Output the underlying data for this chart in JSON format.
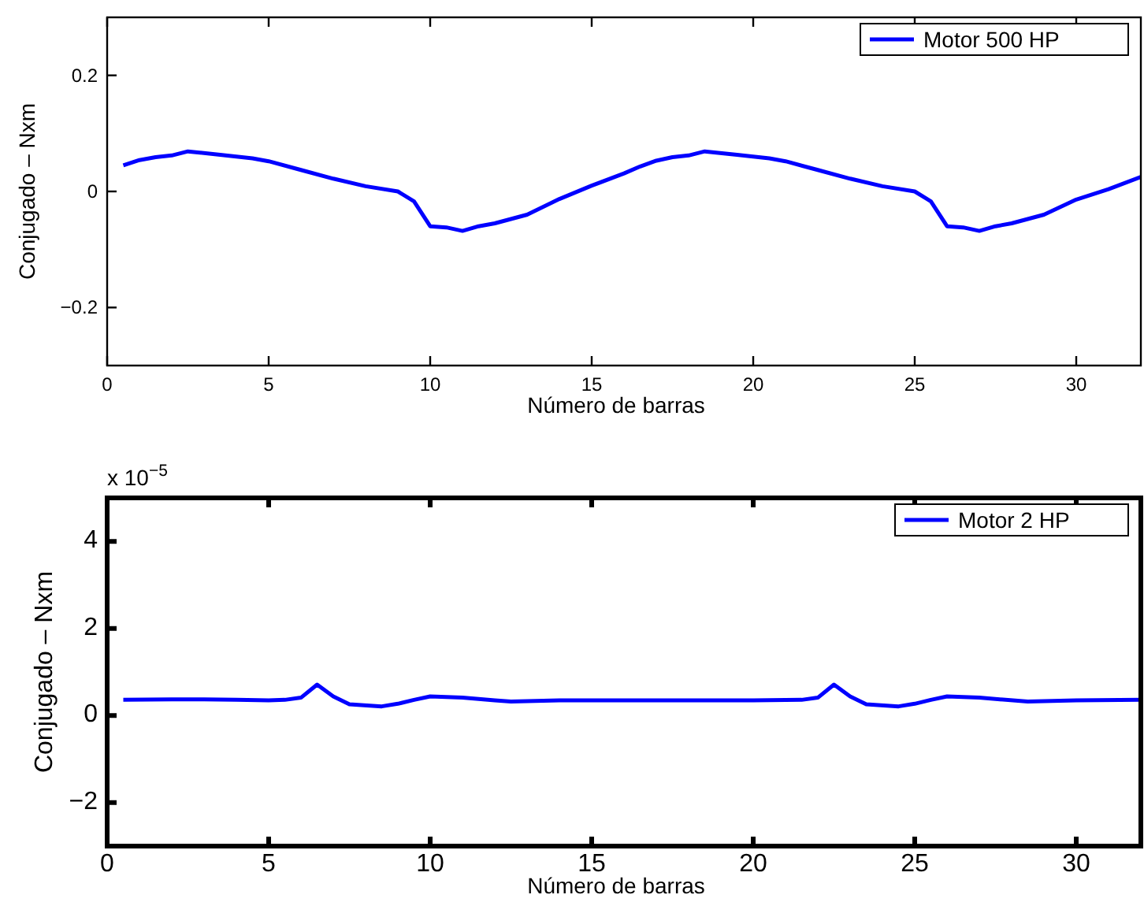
{
  "chart_data": [
    {
      "type": "line",
      "xlabel": "Número de barras",
      "ylabel": "Conjugado – Nxm",
      "xlim": [
        0,
        32
      ],
      "ylim": [
        -0.3,
        0.3
      ],
      "xticks": [
        0,
        5,
        10,
        15,
        20,
        25,
        30
      ],
      "yticks": [
        {
          "value": -0.2,
          "label": "−0.2"
        },
        0,
        0.2
      ],
      "legend": "top right",
      "grid": false,
      "line_style": "solid",
      "marker": "none",
      "series": [
        {
          "name": "Motor 500 HP",
          "color": "#0000ff",
          "x": [
            0.5,
            1,
            1.5,
            2,
            2.5,
            3.5,
            4.5,
            5,
            6,
            7,
            8,
            9,
            9.5,
            10,
            10.5,
            11,
            11.5,
            12,
            13,
            14,
            15,
            16,
            16.5,
            17,
            17.5,
            18,
            18.5,
            19.5,
            20.5,
            21,
            22,
            23,
            24,
            25,
            25.5,
            26,
            26.5,
            27,
            27.5,
            28,
            29,
            30,
            31,
            32
          ],
          "values": [
            0.045,
            0.054,
            0.059,
            0.062,
            0.069,
            0.063,
            0.057,
            0.052,
            0.037,
            0.022,
            0.009,
            0.0,
            -0.017,
            -0.06,
            -0.062,
            -0.068,
            -0.06,
            -0.055,
            -0.04,
            -0.013,
            0.01,
            0.031,
            0.043,
            0.053,
            0.059,
            0.062,
            0.069,
            0.063,
            0.057,
            0.052,
            0.037,
            0.022,
            0.009,
            0.0,
            -0.017,
            -0.06,
            -0.062,
            -0.068,
            -0.06,
            -0.055,
            -0.04,
            -0.014,
            0.004,
            0.025
          ]
        }
      ]
    },
    {
      "type": "line",
      "xlabel": "Número de barras",
      "ylabel": "Conjugado – Nxm",
      "annotations": [
        "x 10$^{−5}$"
      ],
      "xlim": [
        0,
        32
      ],
      "ylim": [
        -3,
        5
      ],
      "xticks": [
        0,
        5,
        10,
        15,
        20,
        25,
        30
      ],
      "yticks": [
        {
          "value": -2,
          "label": "−2"
        },
        0,
        2,
        4
      ],
      "legend": "top right",
      "grid": false,
      "line_style": "solid",
      "marker": "none",
      "series": [
        {
          "name": "Motor 2 HP",
          "color": "#0000ff",
          "x": [
            0.5,
            2,
            3,
            4,
            5,
            5.5,
            6,
            6.5,
            7,
            7.5,
            8.5,
            9,
            9.5,
            10,
            11,
            12,
            12.5,
            14,
            16,
            18,
            20,
            21.5,
            22,
            22.5,
            23,
            23.5,
            24.5,
            25,
            25.5,
            26,
            27,
            28.5,
            30,
            32
          ],
          "values": [
            0.36,
            0.37,
            0.37,
            0.36,
            0.35,
            0.36,
            0.41,
            0.71,
            0.44,
            0.26,
            0.21,
            0.27,
            0.36,
            0.44,
            0.41,
            0.35,
            0.32,
            0.35,
            0.35,
            0.35,
            0.35,
            0.36,
            0.41,
            0.71,
            0.44,
            0.26,
            0.21,
            0.27,
            0.36,
            0.44,
            0.41,
            0.32,
            0.35,
            0.36
          ]
        }
      ]
    }
  ]
}
